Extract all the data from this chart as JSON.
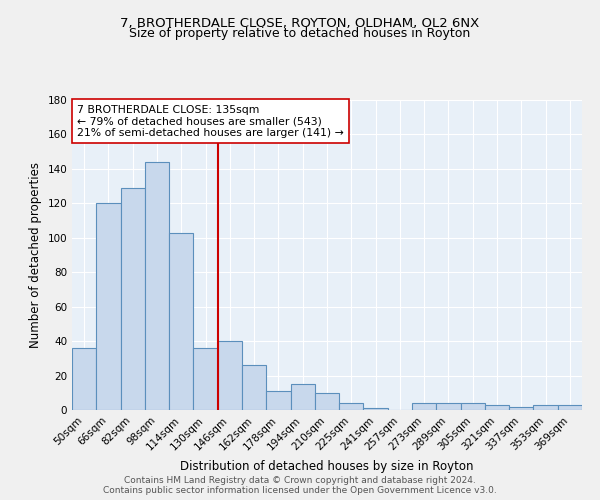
{
  "title_line1": "7, BROTHERDALE CLOSE, ROYTON, OLDHAM, OL2 6NX",
  "title_line2": "Size of property relative to detached houses in Royton",
  "xlabel": "Distribution of detached houses by size in Royton",
  "ylabel": "Number of detached properties",
  "categories": [
    "50sqm",
    "66sqm",
    "82sqm",
    "98sqm",
    "114sqm",
    "130sqm",
    "146sqm",
    "162sqm",
    "178sqm",
    "194sqm",
    "210sqm",
    "225sqm",
    "241sqm",
    "257sqm",
    "273sqm",
    "289sqm",
    "305sqm",
    "321sqm",
    "337sqm",
    "353sqm",
    "369sqm"
  ],
  "values": [
    36,
    120,
    129,
    144,
    103,
    36,
    40,
    26,
    11,
    15,
    10,
    4,
    1,
    0,
    4,
    4,
    4,
    3,
    2,
    3,
    3
  ],
  "bar_color": "#c8d8ec",
  "bar_edge_color": "#5b8fbc",
  "bg_color": "#e8f0f8",
  "grid_color": "#ffffff",
  "vline_x": 5.5,
  "vline_color": "#cc0000",
  "annotation_text": "7 BROTHERDALE CLOSE: 135sqm\n← 79% of detached houses are smaller (543)\n21% of semi-detached houses are larger (141) →",
  "annotation_box_color": "#ffffff",
  "annotation_box_edge": "#cc0000",
  "ylim": [
    0,
    180
  ],
  "yticks": [
    0,
    20,
    40,
    60,
    80,
    100,
    120,
    140,
    160,
    180
  ],
  "footer_line1": "Contains HM Land Registry data © Crown copyright and database right 2024.",
  "footer_line2": "Contains public sector information licensed under the Open Government Licence v3.0.",
  "title1_fontsize": 9.5,
  "title2_fontsize": 9.0,
  "axis_label_fontsize": 8.5,
  "tick_fontsize": 7.5,
  "annotation_fontsize": 7.8,
  "footer_fontsize": 6.5,
  "fig_bg": "#f0f0f0"
}
